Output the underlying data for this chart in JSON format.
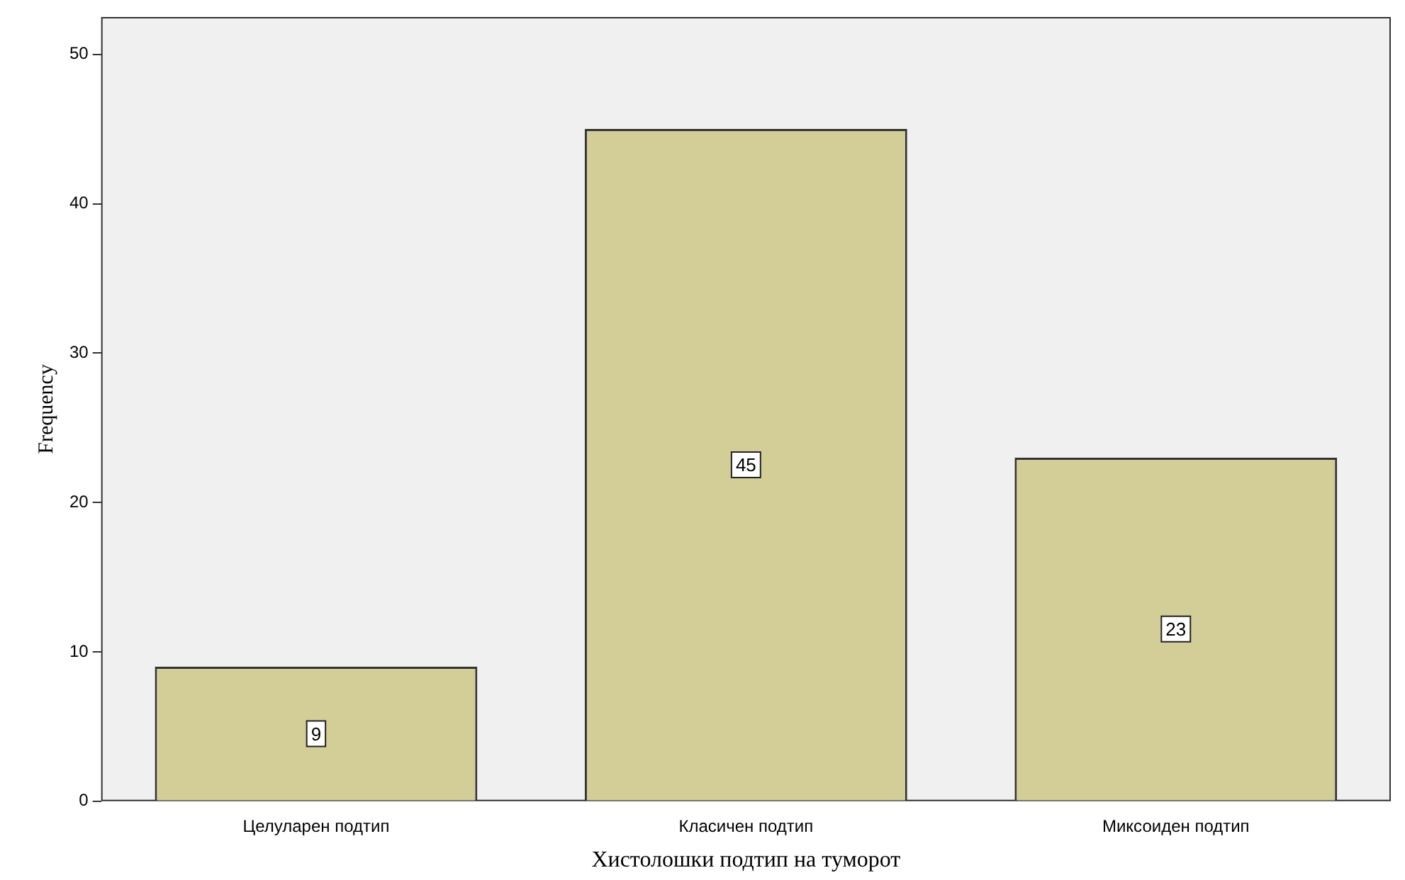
{
  "chart_data": {
    "type": "bar",
    "xlabel": "Хистолошки подтип на туморот",
    "ylabel": "Frequency",
    "categories": [
      "Целуларен подтип",
      "Класичен подтип",
      "Миксоиден подтип"
    ],
    "values": [
      9,
      45,
      23
    ],
    "color": "#d3cd97",
    "ylim": [
      0,
      52.5
    ],
    "yticks": [
      0,
      10,
      20,
      30,
      40,
      50
    ],
    "grid": false,
    "legend": false,
    "data_labels": true
  }
}
